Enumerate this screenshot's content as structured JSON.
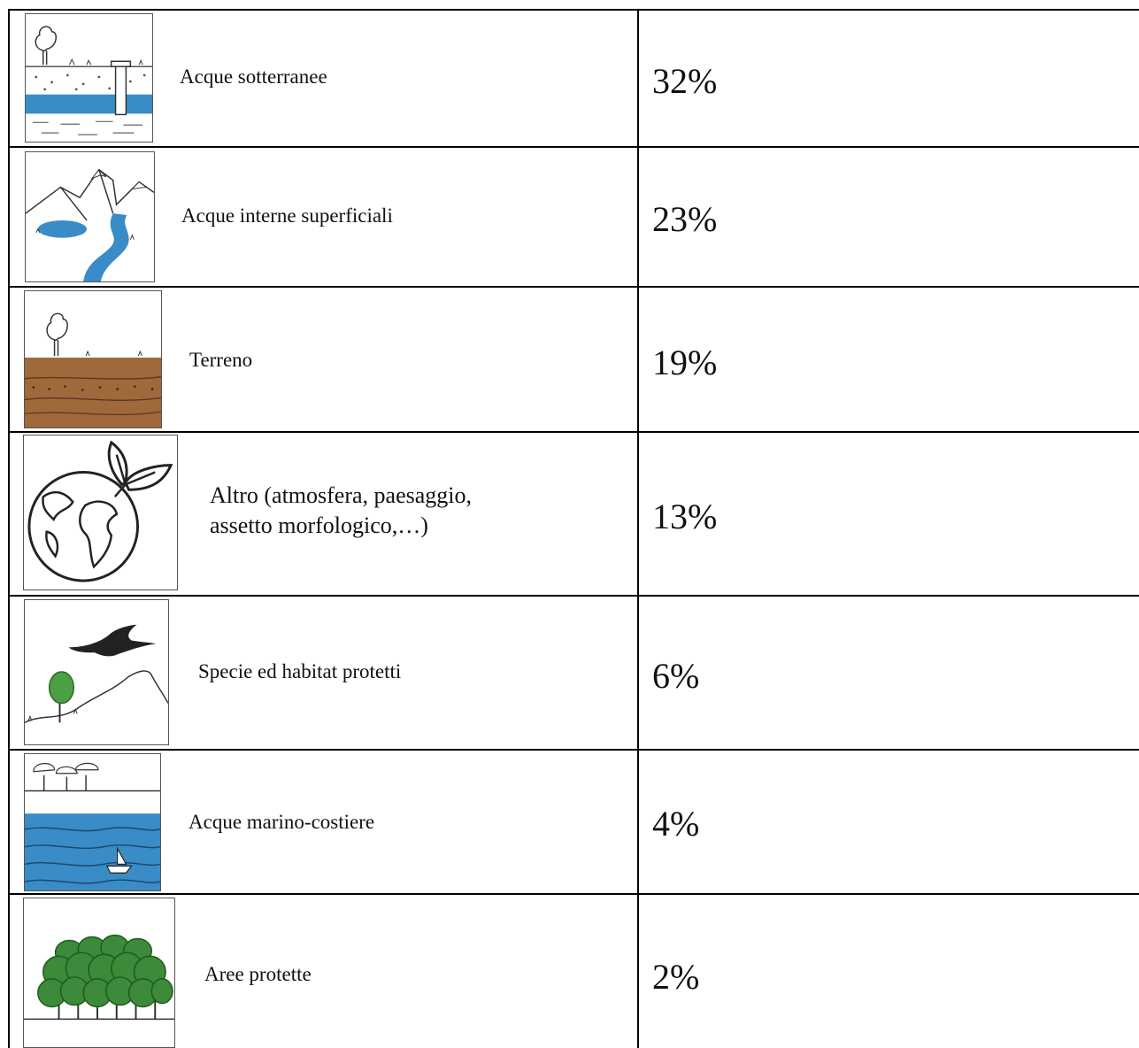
{
  "table": {
    "rows": [
      {
        "icon": "groundwater-icon",
        "label": "Acque sotterranee",
        "value": "32%"
      },
      {
        "icon": "surface-water-icon",
        "label": "Acque interne superficiali",
        "value": "23%"
      },
      {
        "icon": "soil-icon",
        "label": "Terreno",
        "value": "19%"
      },
      {
        "icon": "globe-leaf-icon",
        "label_line1": "Altro (atmosfera, paesaggio,",
        "label_line2": "assetto morfologico,…)",
        "value": "13%"
      },
      {
        "icon": "bird-habitat-icon",
        "label": "Specie ed habitat protetti",
        "value": "6%"
      },
      {
        "icon": "sea-boat-icon",
        "label": "Acque marino-costiere",
        "value": "4%"
      },
      {
        "icon": "forest-icon",
        "label": "Aree protette",
        "value": "2%"
      }
    ]
  }
}
